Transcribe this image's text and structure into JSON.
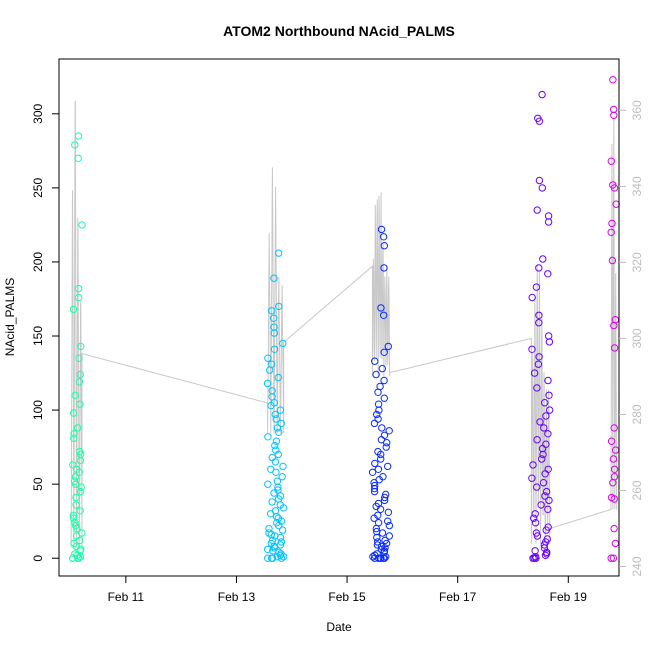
{
  "chart_data": {
    "type": "scatter",
    "title": "ATOM2 Northbound NAcid_PALMS",
    "xlabel": "Date",
    "ylabel": "NAcid_PALMS",
    "x_range": [
      "2017-02-09T19:00",
      "2017-02-19T22:00"
    ],
    "x_ticks": [
      {
        "date": "2017-02-11",
        "label": "Feb 11"
      },
      {
        "date": "2017-02-13",
        "label": "Feb 13"
      },
      {
        "date": "2017-02-15",
        "label": "Feb 15"
      },
      {
        "date": "2017-02-17",
        "label": "Feb 17"
      },
      {
        "date": "2017-02-19",
        "label": "Feb 19"
      }
    ],
    "y_left": {
      "range": [
        -12,
        337
      ],
      "ticks": [
        0,
        50,
        100,
        150,
        200,
        250,
        300
      ]
    },
    "y_right": {
      "range": [
        237.5,
        373.5
      ],
      "ticks": [
        240,
        260,
        280,
        300,
        320,
        340,
        360
      ],
      "color": "#bdbdbd"
    },
    "grid": false,
    "legend": "none",
    "point_color_scale": [
      "#00ffaa",
      "#00c8ff",
      "#0022ff",
      "#6600ff",
      "#dd00ff"
    ],
    "flights": [
      {
        "start": "2017-02-10T00:30",
        "end": "2017-02-10T05:00",
        "color": "#1affa8",
        "values": [
          285,
          279,
          270,
          225,
          182,
          176,
          168,
          143,
          135,
          124,
          119,
          110,
          104,
          98,
          88,
          84,
          81,
          72,
          70,
          66,
          63,
          60,
          58,
          55,
          52,
          50,
          48,
          45,
          41,
          36,
          32,
          29,
          27,
          24,
          22,
          20,
          17,
          15,
          12,
          10,
          8,
          6,
          5,
          3,
          2,
          1,
          0,
          0,
          0,
          0
        ]
      },
      {
        "start": "2017-02-13T13:30",
        "end": "2017-02-13T20:30",
        "color": "#00c4ff",
        "values": [
          206,
          189,
          170,
          167,
          162,
          156,
          152,
          145,
          141,
          135,
          131,
          127,
          122,
          118,
          113,
          109,
          105,
          103,
          100,
          97,
          94,
          91,
          88,
          85,
          82,
          79,
          76,
          73,
          70,
          68,
          65,
          62,
          60,
          58,
          55,
          52,
          50,
          48,
          46,
          44,
          42,
          40,
          38,
          36,
          34,
          32,
          30,
          28,
          27,
          25,
          24,
          22,
          20,
          19,
          17,
          16,
          15,
          14,
          12,
          11,
          10,
          9,
          8,
          7,
          6,
          5,
          4,
          3,
          2,
          1,
          1,
          0,
          0,
          0,
          0
        ]
      },
      {
        "start": "2017-02-15T11:00",
        "end": "2017-02-15T18:30",
        "color": "#0a2cff",
        "values": [
          222,
          217,
          211,
          196,
          169,
          164,
          143,
          139,
          133,
          128,
          124,
          120,
          116,
          112,
          108,
          104,
          100,
          97,
          94,
          91,
          88,
          86,
          83,
          80,
          78,
          75,
          72,
          70,
          67,
          64,
          62,
          60,
          58,
          55,
          53,
          51,
          49,
          47,
          45,
          43,
          41,
          39,
          37,
          35,
          33,
          31,
          29,
          27,
          25,
          24,
          22,
          20,
          18,
          17,
          15,
          14,
          12,
          11,
          10,
          9,
          8,
          7,
          6,
          5,
          4,
          3,
          2,
          1,
          1,
          0,
          0,
          0,
          0,
          0,
          0
        ]
      },
      {
        "start": "2017-02-18T08:00",
        "end": "2017-02-18T16:00",
        "color": "#6a00ff",
        "values": [
          313,
          297,
          295,
          255,
          250,
          235,
          231,
          227,
          202,
          196,
          192,
          183,
          176,
          164,
          159,
          150,
          146,
          141,
          136,
          131,
          125,
          120,
          115,
          110,
          105,
          100,
          96,
          92,
          88,
          84,
          80,
          77,
          74,
          70,
          67,
          63,
          60,
          57,
          54,
          51,
          48,
          45,
          42,
          39,
          36,
          33,
          30,
          27,
          24,
          21,
          19,
          17,
          15,
          13,
          11,
          9,
          7,
          5,
          4,
          3,
          2,
          1,
          0,
          0,
          0
        ]
      },
      {
        "start": "2017-02-19T18:30",
        "end": "2017-02-19T21:00",
        "color": "#dd00ee",
        "values": [
          323,
          303,
          299,
          268,
          252,
          250,
          239,
          226,
          220,
          201,
          161,
          157,
          142,
          88,
          79,
          73,
          67,
          60,
          55,
          51,
          41,
          40,
          20,
          10,
          0,
          0
        ]
      }
    ],
    "secondary_line": {
      "color": "#c8c8c8",
      "description_axis": "right",
      "segments": [
        {
          "start": "2017-02-10T00:15",
          "end": "2017-02-10T05:00",
          "base": 245,
          "peak": 371,
          "osc": 4
        },
        {
          "start": "2017-02-13T13:30",
          "end": "2017-02-13T20:30",
          "base": 275,
          "peak": 346,
          "osc": 5
        },
        {
          "start": "2017-02-15T11:00",
          "end": "2017-02-15T18:30",
          "base": 290,
          "peak": 343,
          "osc": 9
        },
        {
          "start": "2017-02-18T08:00",
          "end": "2017-02-18T16:00",
          "base": 246,
          "peak": 325,
          "osc": 8
        },
        {
          "start": "2017-02-19T18:30",
          "end": "2017-02-19T21:00",
          "base": 255,
          "peak": 368,
          "osc": 3
        }
      ],
      "ferry_legs": [
        {
          "from": "2017-02-10T05:00",
          "to": "2017-02-13T13:30",
          "from_value": 296,
          "to_value": 283
        },
        {
          "from": "2017-02-13T20:30",
          "to": "2017-02-15T11:00",
          "from_value": 299,
          "to_value": 319
        },
        {
          "from": "2017-02-15T18:30",
          "to": "2017-02-18T08:00",
          "from_value": 291,
          "to_value": 300
        },
        {
          "from": "2017-02-18T16:00",
          "to": "2017-02-19T18:30",
          "from_value": 250,
          "to_value": 255
        }
      ]
    }
  }
}
